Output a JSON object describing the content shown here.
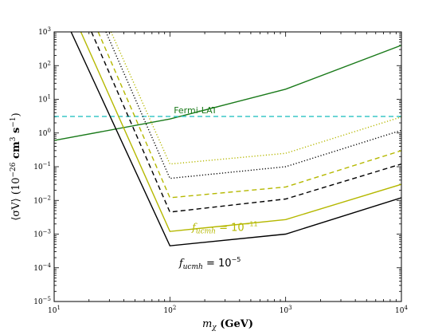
{
  "chart_data": {
    "type": "line",
    "title": "",
    "xlabel": {
      "base": "m",
      "sub": "χ",
      "rest": " (GeV)"
    },
    "ylabel": {
      "lead": "⟨σV⟩ (10",
      "exp1": "−26",
      "mid": " cm",
      "exp2": "3",
      "mid2": " s",
      "exp3": "−1",
      "end": ")"
    },
    "x_scale": "log",
    "y_scale": "log",
    "xlim": [
      10,
      10000
    ],
    "ylim": [
      1e-05,
      1000
    ],
    "x_ticks": [
      {
        "value": 10,
        "base": "10",
        "exp": "1"
      },
      {
        "value": 100,
        "base": "10",
        "exp": "2"
      },
      {
        "value": 1000,
        "base": "10",
        "exp": "3"
      },
      {
        "value": 10000,
        "base": "10",
        "exp": "4"
      }
    ],
    "y_ticks": [
      {
        "value": 1e-05,
        "base": "10",
        "exp": "−5"
      },
      {
        "value": 0.0001,
        "base": "10",
        "exp": "−4"
      },
      {
        "value": 0.001,
        "base": "10",
        "exp": "−3"
      },
      {
        "value": 0.01,
        "base": "10",
        "exp": "−2"
      },
      {
        "value": 0.1,
        "base": "10",
        "exp": "−1"
      },
      {
        "value": 1,
        "base": "10",
        "exp": "0"
      },
      {
        "value": 10,
        "base": "10",
        "exp": "1"
      },
      {
        "value": 100,
        "base": "10",
        "exp": "2"
      },
      {
        "value": 1000,
        "base": "10",
        "exp": "3"
      }
    ],
    "series": [
      {
        "color": "#1a7a1a",
        "dash": "solid",
        "x": [
          10,
          100,
          1000,
          10000
        ],
        "y": [
          0.6,
          2.6,
          20,
          400
        ]
      },
      {
        "color": "#3cc7c7",
        "dash": "dashed",
        "x": [
          10,
          10000
        ],
        "y": [
          3.1,
          3.1
        ]
      },
      {
        "color": "#000000",
        "dash": "solid",
        "x": [
          14,
          100,
          1000,
          10000
        ],
        "y": [
          1000,
          0.00045,
          0.001,
          0.012
        ]
      },
      {
        "color": "#b5b800",
        "dash": "solid",
        "x": [
          17,
          100,
          1000,
          10000
        ],
        "y": [
          1000,
          0.0012,
          0.0027,
          0.03
        ]
      },
      {
        "color": "#000000",
        "dash": "dashed",
        "x": [
          21,
          100,
          1000,
          10000
        ],
        "y": [
          1000,
          0.0045,
          0.011,
          0.12
        ]
      },
      {
        "color": "#b5b800",
        "dash": "dashed",
        "x": [
          24,
          100,
          1000,
          10000
        ],
        "y": [
          1000,
          0.012,
          0.025,
          0.3
        ]
      },
      {
        "color": "#000000",
        "dash": "dotted",
        "x": [
          28,
          100,
          1000,
          10000
        ],
        "y": [
          1000,
          0.045,
          0.1,
          1.2
        ]
      },
      {
        "color": "#b5b800",
        "dash": "dotted",
        "x": [
          31,
          100,
          1000,
          10000
        ],
        "y": [
          1000,
          0.12,
          0.25,
          3
        ]
      }
    ],
    "annotations": [
      {
        "text": "Fermi-LAT",
        "color": "#1a7a1a",
        "x": 108,
        "y": 3.9
      },
      {
        "text": "f",
        "sub": "ucmh",
        "rest": " = 10",
        "exp": "−11",
        "color": "#b5b800",
        "x": 155,
        "y": 0.00125
      },
      {
        "text": "f",
        "sub": "ucmh",
        "rest": " = 10",
        "exp": "−5",
        "color": "#000000",
        "x": 120,
        "y": 0.00011
      }
    ]
  }
}
